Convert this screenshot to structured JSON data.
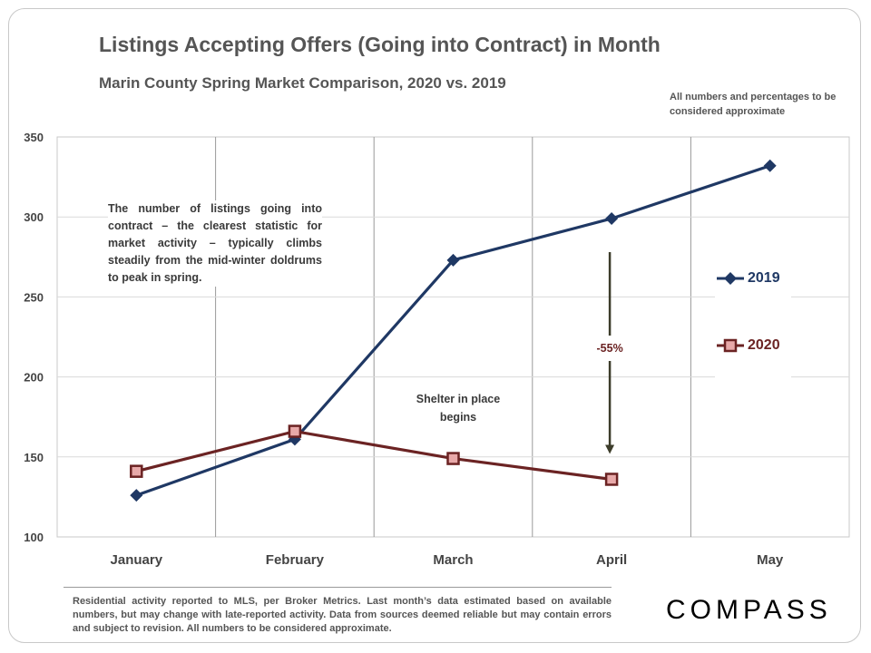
{
  "title": "Listings Accepting Offers (Going into Contract) in Month",
  "subtitle": "Marin County Spring Market Comparison,  2020 vs. 2019",
  "disclaimer": "All numbers and percentages to be considered approximate",
  "note": "The number of listings going into contract – the clearest statistic for market activity – typically climbs steadily from the mid-winter doldrums to peak in spring.",
  "shelter_note": "Shelter in place begins",
  "drop_label": "-55%",
  "footnote": "Residential activity reported to MLS, per Broker Metrics. Last month’s data estimated based on available numbers, but may change with late-reported activity. Data from sources deemed reliable but may contain errors and subject to revision. All numbers to be considered approximate.",
  "brand": "COMPASS",
  "colors": {
    "series_2019": "#1f3864",
    "series_2020": "#6b2323",
    "marker_2020_fill": "#e8a9a9",
    "grid": "#c8c8c8",
    "arrow": "#3d3d2b"
  },
  "chart_data": {
    "type": "line",
    "categories": [
      "January",
      "February",
      "March",
      "April",
      "May"
    ],
    "series": [
      {
        "name": "2019",
        "values": [
          126,
          161,
          273,
          299,
          332
        ],
        "marker": "diamond"
      },
      {
        "name": "2020",
        "values": [
          141,
          166,
          149,
          136,
          null
        ],
        "marker": "square"
      }
    ],
    "yticks": [
      "100",
      "150",
      "200",
      "250",
      "300",
      "350"
    ],
    "ylim": [
      100,
      350
    ],
    "grid": "vertical",
    "legend_position": "right",
    "annotation": {
      "label": "-55%",
      "category": "April",
      "from": 299,
      "to": 136
    }
  }
}
